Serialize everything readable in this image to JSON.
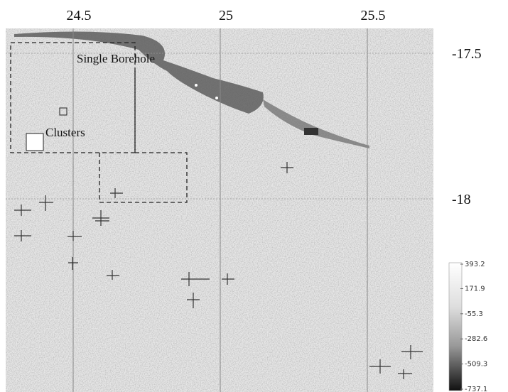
{
  "map": {
    "x_ticks": [
      24.5,
      25,
      25.5
    ],
    "y_ticks": [
      -17.5,
      -18
    ],
    "legend": {
      "single_borehole": "Single Borehole",
      "clusters": "Clusters"
    },
    "colorbar": {
      "ticks": [
        393.2,
        171.9,
        -55.3,
        -282.6,
        -509.3,
        -737.1
      ]
    }
  }
}
